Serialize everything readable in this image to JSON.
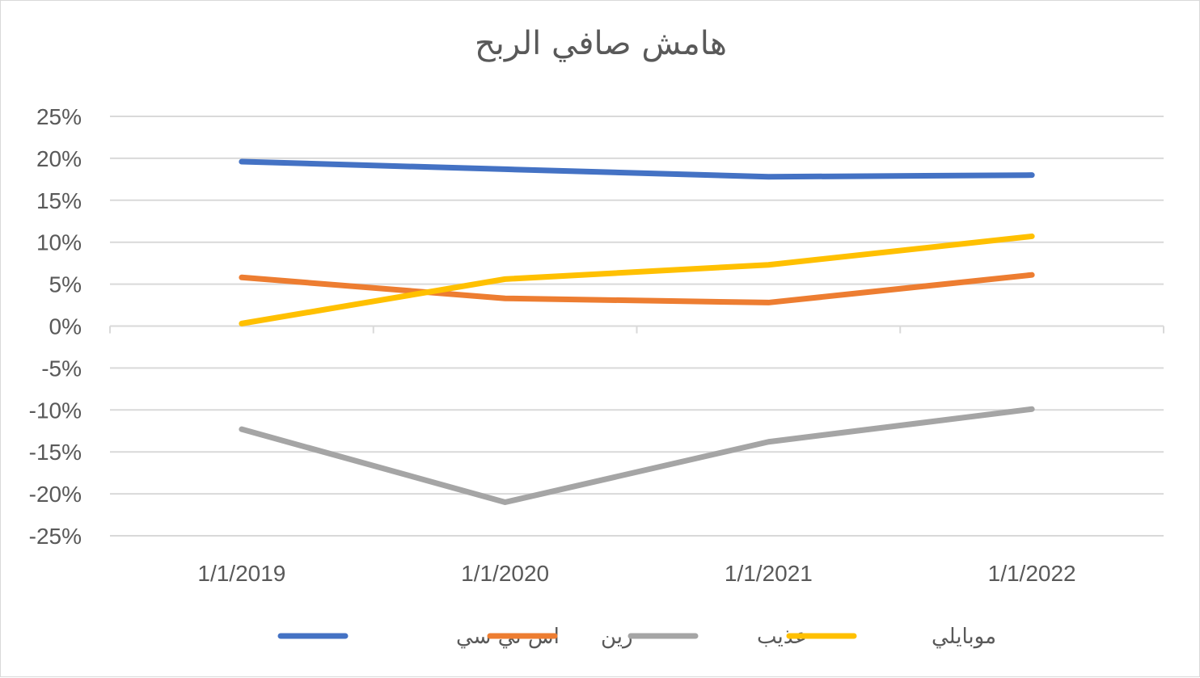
{
  "chart_data": {
    "type": "line",
    "title": "هامش صافي الربح",
    "categories": [
      "1/1/2019",
      "1/1/2020",
      "1/1/2021",
      "1/1/2022"
    ],
    "series": [
      {
        "name": "اس تي سي",
        "color": "#4472C4",
        "values": [
          0.196,
          0.187,
          0.178,
          0.18
        ]
      },
      {
        "name": "زين",
        "color": "#ED7D31",
        "values": [
          0.058,
          0.033,
          0.028,
          0.061
        ]
      },
      {
        "name": "عذيب",
        "color": "#A5A5A5",
        "values": [
          -0.123,
          -0.21,
          -0.138,
          -0.099
        ]
      },
      {
        "name": "موبايلي",
        "color": "#FFC000",
        "values": [
          0.003,
          0.056,
          0.073,
          0.107
        ]
      }
    ],
    "y_ticks": [
      "25%",
      "20%",
      "15%",
      "10%",
      "5%",
      "0%",
      "-5%",
      "-10%",
      "-15%",
      "-20%",
      "-25%"
    ],
    "ylim": [
      -0.25,
      0.25
    ],
    "grid": true,
    "legend_position": "bottom"
  }
}
